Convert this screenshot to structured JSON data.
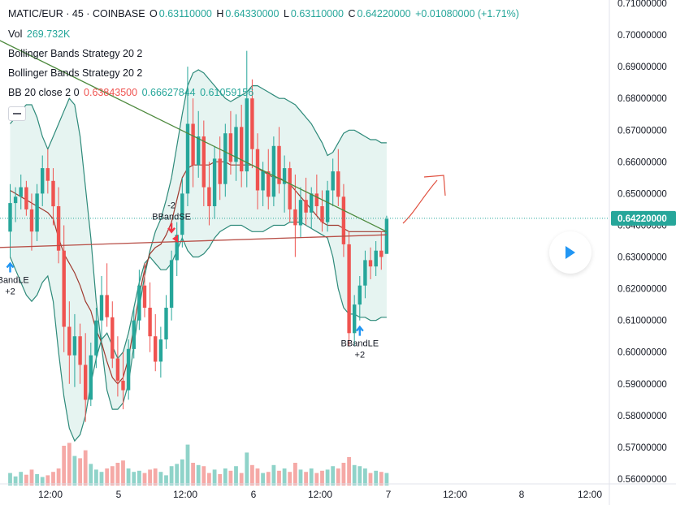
{
  "header": {
    "symbol": "MATIC/EUR · 45 · COINBASE",
    "o_label": "O",
    "o_value": "0.63110000",
    "h_label": "H",
    "h_value": "0.64330000",
    "l_label": "L",
    "l_value": "0.63110000",
    "c_label": "C",
    "c_value": "0.64220000",
    "change": "+0.01080000 (+1.71%)"
  },
  "volume": {
    "label": "Vol",
    "value": "269.732K"
  },
  "strategies": [
    "Bollinger Bands Strategy 20 2",
    "Bollinger Bands Strategy 20 2"
  ],
  "bb": {
    "label": "BB 20 close 2 0",
    "basis": "0.63843500",
    "upper": "0.66627844",
    "lower": "0.61059156"
  },
  "colors": {
    "up": "#26a69a",
    "down": "#ef5350",
    "band": "#2e8a7a",
    "band_fill": "#e6f4f1",
    "basis": "#a03a2f",
    "trendline": "#4e8a3e",
    "hline": "#b84f47",
    "buy": "#2196f3",
    "sell": "#f23645",
    "price_tag": "#26a69a"
  },
  "chart_data": {
    "type": "candlestick",
    "ylim": [
      0.56,
      0.71
    ],
    "y_ticks": [
      "0.71000000",
      "0.70000000",
      "0.69000000",
      "0.68000000",
      "0.67000000",
      "0.66000000",
      "0.65000000",
      "0.64000000",
      "0.63000000",
      "0.62000000",
      "0.61000000",
      "0.60000000",
      "0.59000000",
      "0.58000000",
      "0.57000000",
      "0.56000000"
    ],
    "x_ticks": [
      "12:00",
      "5",
      "12:00",
      "6",
      "12:00",
      "7",
      "12:00",
      "8",
      "12:00"
    ],
    "last_price": "0.64220000",
    "candles": [
      [
        0.638,
        0.653,
        0.63,
        0.647
      ],
      [
        0.647,
        0.652,
        0.641,
        0.649
      ],
      [
        0.649,
        0.656,
        0.645,
        0.652
      ],
      [
        0.652,
        0.654,
        0.643,
        0.645
      ],
      [
        0.645,
        0.65,
        0.632,
        0.638
      ],
      [
        0.638,
        0.653,
        0.635,
        0.65
      ],
      [
        0.65,
        0.662,
        0.646,
        0.658
      ],
      [
        0.658,
        0.664,
        0.65,
        0.654
      ],
      [
        0.654,
        0.658,
        0.64,
        0.646
      ],
      [
        0.646,
        0.652,
        0.628,
        0.632
      ],
      [
        0.632,
        0.64,
        0.6,
        0.608
      ],
      [
        0.608,
        0.616,
        0.59,
        0.599
      ],
      [
        0.599,
        0.612,
        0.589,
        0.605
      ],
      [
        0.605,
        0.609,
        0.59,
        0.596
      ],
      [
        0.596,
        0.606,
        0.578,
        0.585
      ],
      [
        0.585,
        0.603,
        0.583,
        0.599
      ],
      [
        0.599,
        0.614,
        0.595,
        0.61
      ],
      [
        0.61,
        0.624,
        0.603,
        0.618
      ],
      [
        0.618,
        0.628,
        0.608,
        0.611
      ],
      [
        0.611,
        0.616,
        0.595,
        0.598
      ],
      [
        0.598,
        0.605,
        0.586,
        0.591
      ],
      [
        0.591,
        0.6,
        0.582,
        0.588
      ],
      [
        0.588,
        0.604,
        0.585,
        0.601
      ],
      [
        0.601,
        0.614,
        0.598,
        0.61
      ],
      [
        0.61,
        0.626,
        0.607,
        0.621
      ],
      [
        0.621,
        0.628,
        0.611,
        0.614
      ],
      [
        0.614,
        0.622,
        0.6,
        0.605
      ],
      [
        0.605,
        0.612,
        0.594,
        0.597
      ],
      [
        0.597,
        0.608,
        0.592,
        0.604
      ],
      [
        0.604,
        0.618,
        0.601,
        0.614
      ],
      [
        0.614,
        0.632,
        0.61,
        0.629
      ],
      [
        0.629,
        0.641,
        0.624,
        0.637
      ],
      [
        0.637,
        0.655,
        0.633,
        0.65
      ],
      [
        0.65,
        0.69,
        0.646,
        0.672
      ],
      [
        0.672,
        0.68,
        0.652,
        0.659
      ],
      [
        0.659,
        0.676,
        0.655,
        0.668
      ],
      [
        0.668,
        0.673,
        0.646,
        0.652
      ],
      [
        0.652,
        0.66,
        0.64,
        0.646
      ],
      [
        0.646,
        0.665,
        0.642,
        0.661
      ],
      [
        0.661,
        0.668,
        0.648,
        0.653
      ],
      [
        0.653,
        0.672,
        0.649,
        0.669
      ],
      [
        0.669,
        0.676,
        0.656,
        0.66
      ],
      [
        0.66,
        0.675,
        0.654,
        0.671
      ],
      [
        0.671,
        0.678,
        0.652,
        0.657
      ],
      [
        0.657,
        0.695,
        0.652,
        0.68
      ],
      [
        0.68,
        0.686,
        0.658,
        0.664
      ],
      [
        0.664,
        0.669,
        0.645,
        0.651
      ],
      [
        0.651,
        0.66,
        0.646,
        0.657
      ],
      [
        0.657,
        0.664,
        0.645,
        0.649
      ],
      [
        0.649,
        0.668,
        0.646,
        0.665
      ],
      [
        0.665,
        0.671,
        0.65,
        0.653
      ],
      [
        0.653,
        0.662,
        0.644,
        0.658
      ],
      [
        0.658,
        0.66,
        0.641,
        0.645
      ],
      [
        0.645,
        0.656,
        0.63,
        0.64
      ],
      [
        0.64,
        0.652,
        0.636,
        0.648
      ],
      [
        0.648,
        0.655,
        0.64,
        0.644
      ],
      [
        0.644,
        0.652,
        0.639,
        0.65
      ],
      [
        0.65,
        0.656,
        0.643,
        0.646
      ],
      [
        0.646,
        0.651,
        0.638,
        0.641
      ],
      [
        0.641,
        0.654,
        0.638,
        0.651
      ],
      [
        0.651,
        0.661,
        0.646,
        0.657
      ],
      [
        0.657,
        0.664,
        0.646,
        0.649
      ],
      [
        0.649,
        0.653,
        0.63,
        0.634
      ],
      [
        0.634,
        0.638,
        0.602,
        0.606
      ],
      [
        0.606,
        0.618,
        0.602,
        0.615
      ],
      [
        0.615,
        0.624,
        0.61,
        0.621
      ],
      [
        0.621,
        0.632,
        0.617,
        0.629
      ],
      [
        0.629,
        0.633,
        0.623,
        0.627
      ],
      [
        0.627,
        0.635,
        0.624,
        0.632
      ],
      [
        0.632,
        0.638,
        0.626,
        0.63
      ],
      [
        0.631,
        0.643,
        0.631,
        0.642
      ]
    ],
    "volumes": [
      0.22,
      0.16,
      0.24,
      0.19,
      0.28,
      0.2,
      0.15,
      0.18,
      0.24,
      0.3,
      0.7,
      0.75,
      0.52,
      0.48,
      0.62,
      0.38,
      0.28,
      0.24,
      0.3,
      0.34,
      0.4,
      0.44,
      0.3,
      0.24,
      0.26,
      0.22,
      0.28,
      0.3,
      0.24,
      0.18,
      0.34,
      0.38,
      0.46,
      0.72,
      0.4,
      0.36,
      0.34,
      0.22,
      0.28,
      0.2,
      0.3,
      0.26,
      0.34,
      0.22,
      0.58,
      0.36,
      0.3,
      0.22,
      0.24,
      0.36,
      0.26,
      0.3,
      0.24,
      0.4,
      0.28,
      0.24,
      0.3,
      0.22,
      0.26,
      0.28,
      0.34,
      0.3,
      0.4,
      0.5,
      0.36,
      0.34,
      0.3,
      0.22,
      0.26,
      0.24,
      0.22
    ],
    "upper_band": [
      0.672,
      0.674,
      0.676,
      0.678,
      0.678,
      0.674,
      0.668,
      0.664,
      0.668,
      0.672,
      0.676,
      0.68,
      0.678,
      0.668,
      0.652,
      0.636,
      0.616,
      0.602,
      0.588,
      0.582,
      0.582,
      0.584,
      0.59,
      0.602,
      0.614,
      0.624,
      0.632,
      0.638,
      0.642,
      0.648,
      0.655,
      0.665,
      0.675,
      0.684,
      0.688,
      0.689,
      0.688,
      0.686,
      0.684,
      0.682,
      0.68,
      0.679,
      0.68,
      0.681,
      0.682,
      0.684,
      0.684,
      0.683,
      0.682,
      0.681,
      0.68,
      0.68,
      0.679,
      0.678,
      0.676,
      0.674,
      0.672,
      0.669,
      0.666,
      0.662,
      0.663,
      0.666,
      0.669,
      0.67,
      0.67,
      0.669,
      0.668,
      0.667,
      0.667,
      0.666,
      0.666
    ],
    "lower_band": [
      0.63,
      0.626,
      0.622,
      0.618,
      0.616,
      0.618,
      0.622,
      0.624,
      0.616,
      0.6,
      0.586,
      0.576,
      0.572,
      0.574,
      0.58,
      0.59,
      0.598,
      0.604,
      0.606,
      0.602,
      0.598,
      0.6,
      0.606,
      0.614,
      0.622,
      0.628,
      0.63,
      0.628,
      0.626,
      0.626,
      0.628,
      0.632,
      0.636,
      0.632,
      0.63,
      0.63,
      0.631,
      0.633,
      0.636,
      0.638,
      0.639,
      0.64,
      0.64,
      0.64,
      0.639,
      0.638,
      0.638,
      0.638,
      0.639,
      0.64,
      0.64,
      0.64,
      0.641,
      0.641,
      0.641,
      0.64,
      0.639,
      0.638,
      0.637,
      0.636,
      0.63,
      0.62,
      0.614,
      0.612,
      0.612,
      0.611,
      0.611,
      0.61,
      0.61,
      0.611,
      0.611
    ],
    "basis": [
      0.651,
      0.65,
      0.649,
      0.648,
      0.647,
      0.646,
      0.645,
      0.644,
      0.642,
      0.636,
      0.631,
      0.628,
      0.625,
      0.621,
      0.616,
      0.613,
      0.607,
      0.603,
      0.597,
      0.592,
      0.59,
      0.592,
      0.598,
      0.608,
      0.618,
      0.626,
      0.631,
      0.633,
      0.634,
      0.637,
      0.641,
      0.648,
      0.655,
      0.658,
      0.659,
      0.659,
      0.659,
      0.659,
      0.66,
      0.66,
      0.66,
      0.659,
      0.659,
      0.659,
      0.659,
      0.659,
      0.658,
      0.657,
      0.656,
      0.655,
      0.655,
      0.654,
      0.653,
      0.651,
      0.649,
      0.647,
      0.645,
      0.643,
      0.641,
      0.64,
      0.64,
      0.64,
      0.639,
      0.638,
      0.638,
      0.638,
      0.638,
      0.638,
      0.638,
      0.638,
      0.638
    ],
    "trendline": {
      "from": [
        -4,
        0.7
      ],
      "to": [
        70,
        0.638
      ]
    },
    "hline": {
      "from": [
        -2,
        0.633
      ],
      "to": [
        70,
        0.637
      ]
    },
    "markers": [
      {
        "type": "buy",
        "index": 0,
        "label": "BBandLE",
        "qty": "+2"
      },
      {
        "type": "sell",
        "index": 30,
        "label": "BBandSE",
        "qty": "-2"
      },
      {
        "type": "buy",
        "index": 65,
        "label": "BBandLE",
        "qty": "+2"
      }
    ]
  }
}
